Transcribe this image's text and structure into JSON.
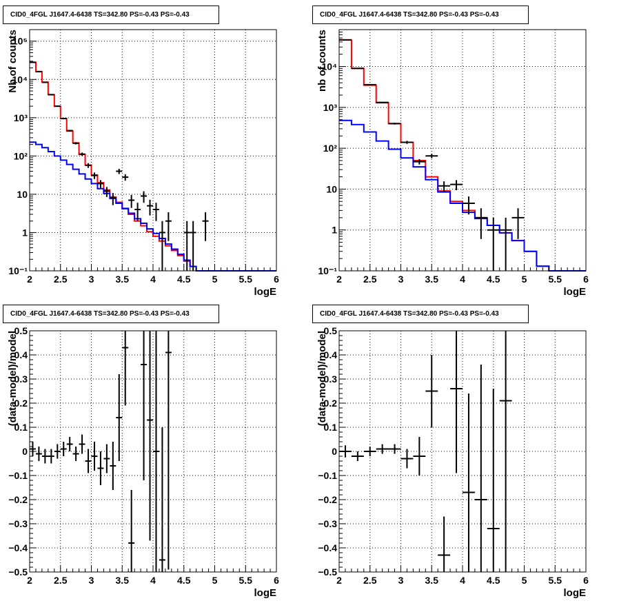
{
  "chart_data": [
    {
      "type": "line",
      "title": "CID0_4FGL J1647.4-6438 TS=342.80 PS=-0.43 PS=-0.43",
      "xlabel": "logE",
      "ylabel": "Nb of counts",
      "xlim": [
        2,
        6
      ],
      "ylim": [
        0.1,
        200000
      ],
      "yscale": "log",
      "grid": true,
      "xticks": [
        "2",
        "2.5",
        "3",
        "3.5",
        "4",
        "4.5",
        "5",
        "5.5",
        "6"
      ],
      "yticks": [
        {
          "value": 0.1,
          "label": "10⁻¹"
        },
        {
          "value": 1,
          "label": "1"
        },
        {
          "value": 10,
          "label": "10"
        },
        {
          "value": 100,
          "label": "10²"
        },
        {
          "value": 1000,
          "label": "10³"
        },
        {
          "value": 10000,
          "label": "10⁴"
        },
        {
          "value": 100000,
          "label": "10⁵"
        }
      ],
      "bin_edges": [
        2.0,
        2.1,
        2.2,
        2.3,
        2.4,
        2.5,
        2.6,
        2.7,
        2.8,
        2.9,
        3.0,
        3.1,
        3.2,
        3.3,
        3.4,
        3.5,
        3.6,
        3.7,
        3.8,
        3.9,
        4.0,
        4.1,
        4.2,
        4.3,
        4.4,
        4.5,
        4.6,
        4.7,
        4.8,
        4.9,
        5.0,
        5.1,
        5.2,
        5.3,
        5.4,
        5.5,
        5.6,
        5.7,
        5.8,
        5.9,
        6.0
      ],
      "series": [
        {
          "type": "step",
          "color": "#ff0000",
          "values": [
            28000,
            16000,
            8500,
            4000,
            2000,
            950,
            450,
            220,
            110,
            58,
            32,
            20,
            13,
            8.5,
            6.2,
            4.3,
            3.0,
            2.0,
            1.5,
            1.05,
            0.8,
            0.6,
            0.45,
            0.34,
            0.25,
            0.18,
            0.13,
            0.1,
            0.1,
            0.1,
            0.1,
            0.1,
            0.1,
            0.1,
            0.1,
            0.1,
            0.1,
            0.1,
            0.1,
            0.1
          ]
        },
        {
          "type": "step",
          "color": "#0000ff",
          "values": [
            230,
            200,
            165,
            130,
            100,
            78,
            60,
            45,
            34,
            25,
            19,
            14,
            10.5,
            7.8,
            5.8,
            4.2,
            3.2,
            2.3,
            1.75,
            1.25,
            0.95,
            0.7,
            0.5,
            0.37,
            0.27,
            0.19,
            0.13,
            0.1,
            0.1,
            0.1,
            0.1,
            0.1,
            0.1,
            0.1,
            0.1,
            0.1,
            0.1,
            0.1,
            0.1,
            0.1
          ]
        },
        {
          "type": "errorbar",
          "color": "#000000",
          "points": [
            {
              "x": 2.05,
              "y": 28000,
              "yerr": 170,
              "xerr": 0.05
            },
            {
              "x": 2.15,
              "y": 16000,
              "yerr": 130,
              "xerr": 0.05
            },
            {
              "x": 2.25,
              "y": 8400,
              "yerr": 90,
              "xerr": 0.05
            },
            {
              "x": 2.35,
              "y": 4000,
              "yerr": 63,
              "xerr": 0.05
            },
            {
              "x": 2.45,
              "y": 2000,
              "yerr": 45,
              "xerr": 0.05
            },
            {
              "x": 2.55,
              "y": 950,
              "yerr": 31,
              "xerr": 0.05
            },
            {
              "x": 2.65,
              "y": 460,
              "yerr": 21,
              "xerr": 0.05
            },
            {
              "x": 2.75,
              "y": 215,
              "yerr": 15,
              "xerr": 0.05
            },
            {
              "x": 2.85,
              "y": 112,
              "yerr": 11,
              "xerr": 0.05
            },
            {
              "x": 2.95,
              "y": 57,
              "yerr": 8,
              "xerr": 0.05
            },
            {
              "x": 3.05,
              "y": 31,
              "yerr": 6,
              "xerr": 0.05
            },
            {
              "x": 3.15,
              "y": 19,
              "yerr": 4.4,
              "xerr": 0.05
            },
            {
              "x": 3.25,
              "y": 12,
              "yerr": 3.5,
              "xerr": 0.05
            },
            {
              "x": 3.35,
              "y": 8,
              "yerr": 2.8,
              "xerr": 0.05
            },
            {
              "x": 3.45,
              "y": 40,
              "yerr": 6.3,
              "xerr": 0.05
            },
            {
              "x": 3.55,
              "y": 28,
              "yerr": 5.3,
              "xerr": 0.05
            },
            {
              "x": 3.65,
              "y": 7,
              "yerr": 2.6,
              "xerr": 0.05
            },
            {
              "x": 3.75,
              "y": 4,
              "yerr": 2,
              "xerr": 0.05
            },
            {
              "x": 3.85,
              "y": 9,
              "yerr": 3,
              "xerr": 0.05
            },
            {
              "x": 3.95,
              "y": 5,
              "yerr": 2.2,
              "xerr": 0.05
            },
            {
              "x": 4.05,
              "y": 4,
              "yerr": 2,
              "xerr": 0.05
            },
            {
              "x": 4.15,
              "y": 1,
              "yerr": 1,
              "xerr": 0.05
            },
            {
              "x": 4.25,
              "y": 2,
              "yerr": 1.4,
              "xerr": 0.05
            },
            {
              "x": 4.55,
              "y": 1,
              "yerr": 1,
              "xerr": 0.05
            },
            {
              "x": 4.65,
              "y": 1,
              "yerr": 1,
              "xerr": 0.05
            },
            {
              "x": 4.85,
              "y": 2,
              "yerr": 1.4,
              "xerr": 0.05
            }
          ]
        }
      ]
    },
    {
      "type": "line",
      "title": "CID0_4FGL J1647.4-6438 TS=342.80 PS=-0.43 PS=-0.43",
      "xlabel": "logE",
      "ylabel": "nb of counts",
      "xlim": [
        2,
        6
      ],
      "ylim": [
        0.1,
        80000
      ],
      "yscale": "log",
      "grid": true,
      "xticks": [
        "2",
        "2.5",
        "3",
        "3.5",
        "4",
        "4.5",
        "5",
        "5.5",
        "6"
      ],
      "yticks": [
        {
          "value": 0.1,
          "label": "10⁻¹"
        },
        {
          "value": 1,
          "label": "1"
        },
        {
          "value": 10,
          "label": "10"
        },
        {
          "value": 100,
          "label": "10²"
        },
        {
          "value": 1000,
          "label": "10³"
        },
        {
          "value": 10000,
          "label": "10⁴"
        }
      ],
      "bin_edges": [
        2.0,
        2.2,
        2.4,
        2.6,
        2.8,
        3.0,
        3.2,
        3.4,
        3.6,
        3.8,
        4.0,
        4.2,
        4.4,
        4.6,
        4.8,
        5.0,
        5.2,
        5.4,
        5.6,
        5.8,
        6.0
      ],
      "series": [
        {
          "type": "step",
          "color": "#ff0000",
          "values": [
            45000,
            9000,
            3500,
            1300,
            400,
            140,
            50,
            20,
            9,
            5.0,
            3.0,
            2.0,
            1.3,
            0.85,
            0.55,
            0.3,
            0.13,
            0.1,
            0.1,
            0.1
          ]
        },
        {
          "type": "step",
          "color": "#0000ff",
          "values": [
            480,
            380,
            250,
            150,
            95,
            58,
            35,
            17,
            8.5,
            4.5,
            2.7,
            1.9,
            1.3,
            0.85,
            0.55,
            0.3,
            0.13,
            0.1,
            0.1,
            0.1
          ]
        },
        {
          "type": "errorbar",
          "color": "#000000",
          "points": [
            {
              "x": 2.1,
              "y": 45000,
              "yerr": 212,
              "xerr": 0.1
            },
            {
              "x": 2.3,
              "y": 9000,
              "yerr": 95,
              "xerr": 0.1
            },
            {
              "x": 2.5,
              "y": 3600,
              "yerr": 60,
              "xerr": 0.1
            },
            {
              "x": 2.7,
              "y": 1320,
              "yerr": 36,
              "xerr": 0.1
            },
            {
              "x": 2.9,
              "y": 400,
              "yerr": 20,
              "xerr": 0.1
            },
            {
              "x": 3.1,
              "y": 140,
              "yerr": 12,
              "xerr": 0.1
            },
            {
              "x": 3.3,
              "y": 47,
              "yerr": 7,
              "xerr": 0.1
            },
            {
              "x": 3.5,
              "y": 65,
              "yerr": 8,
              "xerr": 0.1
            },
            {
              "x": 3.7,
              "y": 12,
              "yerr": 3.5,
              "xerr": 0.1
            },
            {
              "x": 3.9,
              "y": 13,
              "yerr": 3.6,
              "xerr": 0.1
            },
            {
              "x": 4.1,
              "y": 4.5,
              "yerr": 2.1,
              "xerr": 0.1
            },
            {
              "x": 4.3,
              "y": 2,
              "yerr": 1.4,
              "xerr": 0.1
            },
            {
              "x": 4.5,
              "y": 1,
              "yerr": 1,
              "xerr": 0.1
            },
            {
              "x": 4.7,
              "y": 1,
              "yerr": 1,
              "xerr": 0.1
            },
            {
              "x": 4.9,
              "y": 2,
              "yerr": 1.4,
              "xerr": 0.1
            }
          ]
        }
      ]
    },
    {
      "type": "scatter",
      "title": "CID0_4FGL J1647.4-6438 TS=342.80 PS=-0.43 PS=-0.43",
      "xlabel": "logE",
      "ylabel": "(data-model)/model",
      "xlim": [
        2,
        6
      ],
      "ylim": [
        -0.5,
        0.5
      ],
      "grid": true,
      "xticks": [
        "2",
        "2.5",
        "3",
        "3.5",
        "4",
        "4.5",
        "5",
        "5.5",
        "6"
      ],
      "yticks": [
        "−0.5",
        "−0.4",
        "−0.3",
        "−0.2",
        "−0.1",
        "0",
        "0.1",
        "0.2",
        "0.3",
        "0.4",
        "0.5"
      ],
      "series": [
        {
          "type": "errorbar",
          "color": "#000000",
          "points": [
            {
              "x": 2.05,
              "y": 0.01,
              "yerr": 0.03,
              "xerr": 0.05
            },
            {
              "x": 2.15,
              "y": -0.01,
              "yerr": 0.03,
              "xerr": 0.05
            },
            {
              "x": 2.25,
              "y": -0.02,
              "yerr": 0.03,
              "xerr": 0.05
            },
            {
              "x": 2.35,
              "y": -0.02,
              "yerr": 0.03,
              "xerr": 0.05
            },
            {
              "x": 2.45,
              "y": 0.0,
              "yerr": 0.03,
              "xerr": 0.05
            },
            {
              "x": 2.55,
              "y": 0.01,
              "yerr": 0.03,
              "xerr": 0.05
            },
            {
              "x": 2.65,
              "y": 0.03,
              "yerr": 0.03,
              "xerr": 0.05
            },
            {
              "x": 2.75,
              "y": -0.01,
              "yerr": 0.03,
              "xerr": 0.05
            },
            {
              "x": 2.85,
              "y": 0.03,
              "yerr": 0.04,
              "xerr": 0.05
            },
            {
              "x": 2.95,
              "y": -0.04,
              "yerr": 0.05,
              "xerr": 0.05
            },
            {
              "x": 3.05,
              "y": -0.02,
              "yerr": 0.06,
              "xerr": 0.05
            },
            {
              "x": 3.15,
              "y": -0.07,
              "yerr": 0.07,
              "xerr": 0.05
            },
            {
              "x": 3.25,
              "y": -0.03,
              "yerr": 0.06,
              "xerr": 0.05
            },
            {
              "x": 3.35,
              "y": -0.06,
              "yerr": 0.1,
              "xerr": 0.05
            },
            {
              "x": 3.45,
              "y": 0.14,
              "yerr": 0.18,
              "xerr": 0.05
            },
            {
              "x": 3.55,
              "y": 0.43,
              "yerr": 0.24,
              "xerr": 0.05
            },
            {
              "x": 3.65,
              "y": -0.38,
              "yerr": 0.22,
              "xerr": 0.05
            },
            {
              "x": 3.85,
              "y": 0.36,
              "yerr": 0.48,
              "xerr": 0.05
            },
            {
              "x": 3.95,
              "y": 0.13,
              "yerr": 0.5,
              "xerr": 0.05
            },
            {
              "x": 4.05,
              "y": 0.0,
              "yerr": 0.5,
              "xerr": 0.05
            },
            {
              "x": 4.15,
              "y": -0.45,
              "yerr": 0.55,
              "xerr": 0.05
            },
            {
              "x": 4.25,
              "y": 0.41,
              "yerr": 0.9,
              "xerr": 0.05
            }
          ]
        }
      ]
    },
    {
      "type": "scatter",
      "title": "CID0_4FGL J1647.4-6438 TS=342.80 PS=-0.43 PS=-0.43",
      "xlabel": "logE",
      "ylabel": "(data-model)/model",
      "xlim": [
        2,
        6
      ],
      "ylim": [
        -0.5,
        0.5
      ],
      "grid": true,
      "xticks": [
        "2",
        "2.5",
        "3",
        "3.5",
        "4",
        "4.5",
        "5",
        "5.5",
        "6"
      ],
      "yticks": [
        "−0.5",
        "−0.4",
        "−0.3",
        "−0.2",
        "−0.1",
        "0",
        "0.1",
        "0.2",
        "0.3",
        "0.4",
        "0.5"
      ],
      "series": [
        {
          "type": "errorbar",
          "color": "#000000",
          "points": [
            {
              "x": 2.1,
              "y": 0.0,
              "yerr": 0.025,
              "xerr": 0.1
            },
            {
              "x": 2.3,
              "y": -0.02,
              "yerr": 0.02,
              "xerr": 0.1
            },
            {
              "x": 2.5,
              "y": 0.0,
              "yerr": 0.02,
              "xerr": 0.1
            },
            {
              "x": 2.7,
              "y": 0.01,
              "yerr": 0.02,
              "xerr": 0.1
            },
            {
              "x": 2.9,
              "y": 0.01,
              "yerr": 0.02,
              "xerr": 0.1
            },
            {
              "x": 3.1,
              "y": -0.03,
              "yerr": 0.04,
              "xerr": 0.1
            },
            {
              "x": 3.3,
              "y": -0.02,
              "yerr": 0.08,
              "xerr": 0.1
            },
            {
              "x": 3.5,
              "y": 0.25,
              "yerr": 0.15,
              "xerr": 0.1
            },
            {
              "x": 3.7,
              "y": -0.43,
              "yerr": 0.16,
              "xerr": 0.1
            },
            {
              "x": 3.9,
              "y": 0.26,
              "yerr": 0.35,
              "xerr": 0.1
            },
            {
              "x": 4.1,
              "y": -0.17,
              "yerr": 0.41,
              "xerr": 0.1
            },
            {
              "x": 4.3,
              "y": -0.2,
              "yerr": 0.56,
              "xerr": 0.1
            },
            {
              "x": 4.5,
              "y": -0.32,
              "yerr": 0.58,
              "xerr": 0.1
            },
            {
              "x": 4.7,
              "y": 0.21,
              "yerr": 0.8,
              "xerr": 0.1
            }
          ]
        }
      ]
    }
  ]
}
